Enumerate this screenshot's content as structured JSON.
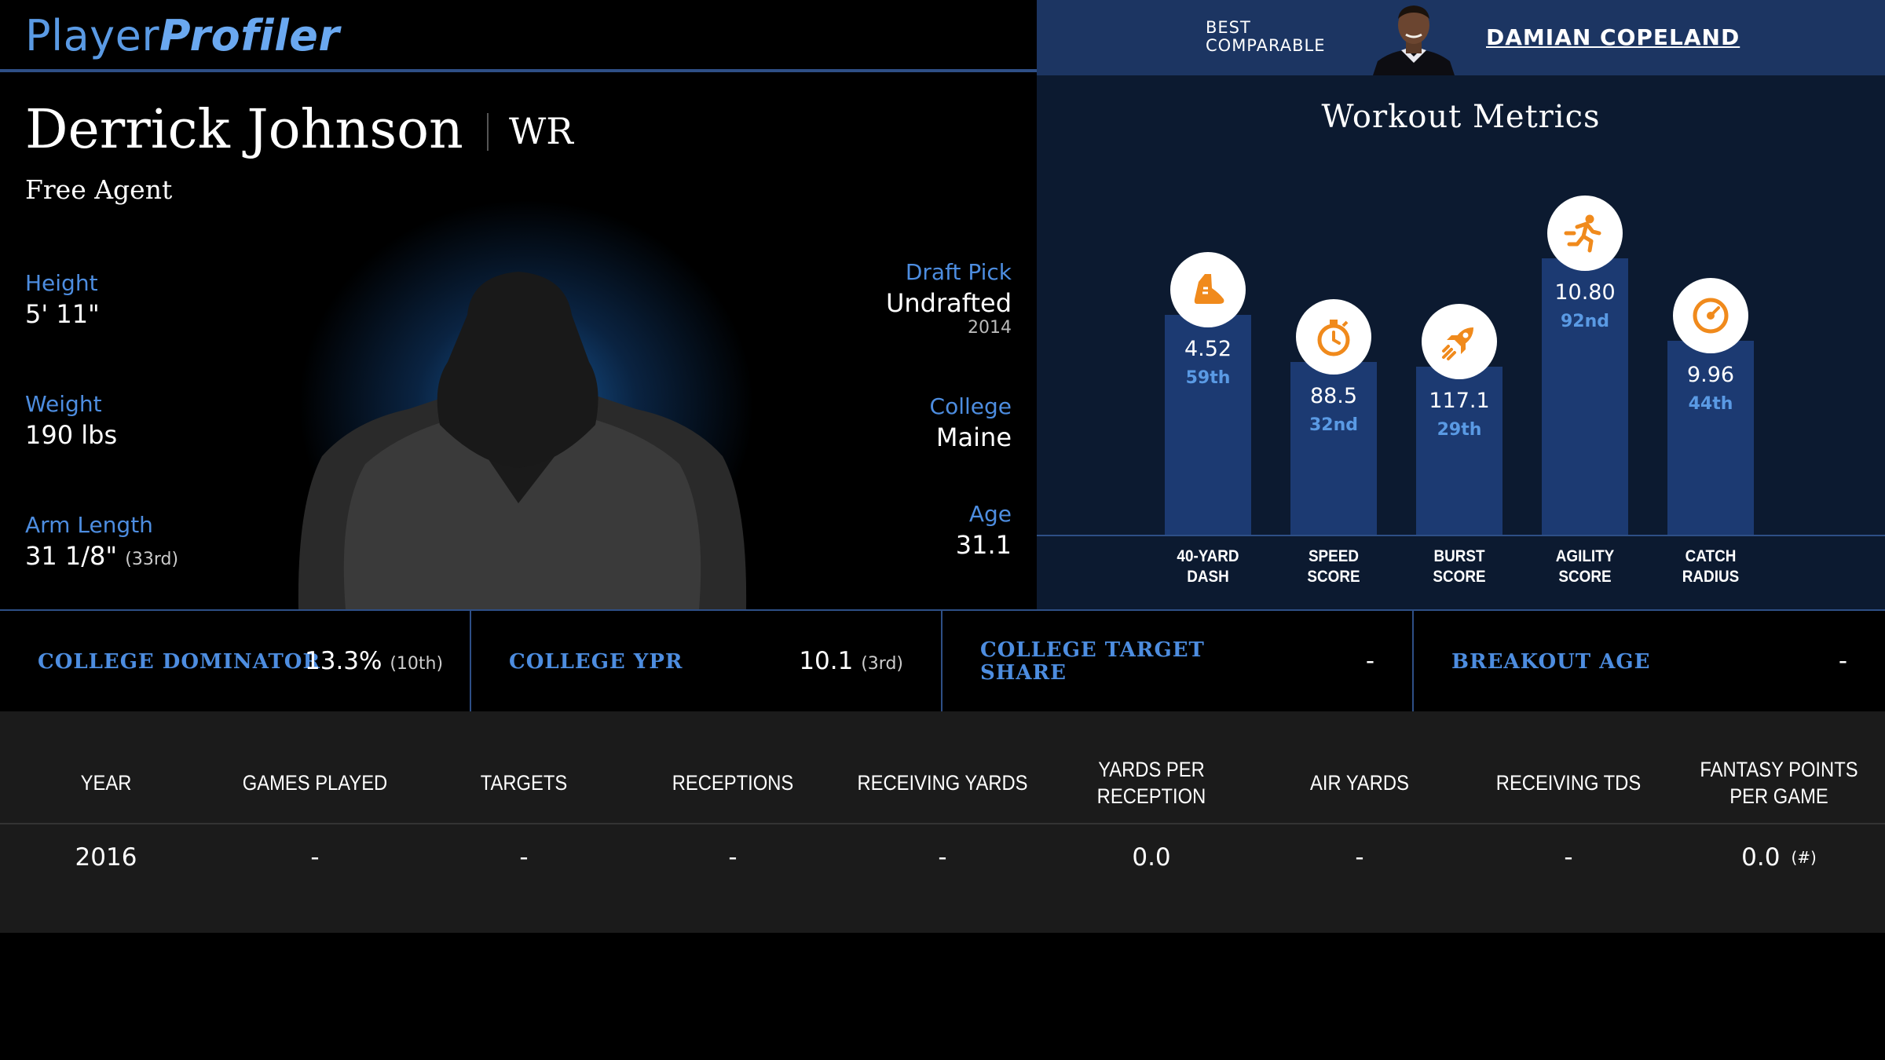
{
  "brand": {
    "part1": "Player",
    "part2": "Profiler"
  },
  "comparable": {
    "label": "BEST COMPARABLE",
    "name": "DAMIAN COPELAND"
  },
  "player": {
    "name": "Derrick Johnson",
    "position": "WR",
    "team": "Free Agent",
    "height_label": "Height",
    "height": "5' 11\"",
    "weight_label": "Weight",
    "weight": "190 lbs",
    "arm_label": "Arm Length",
    "arm": "31 1/8\"",
    "arm_rank": "(33rd)",
    "draft_label": "Draft Pick",
    "draft": "Undrafted",
    "draft_year": "2014",
    "college_label": "College",
    "college": "Maine",
    "age_label": "Age",
    "age": "31.1"
  },
  "workout": {
    "title": "Workout Metrics",
    "metrics": [
      {
        "label_1": "40-YARD",
        "label_2": "DASH",
        "value": "4.52",
        "percentile": "59th",
        "pct_value": 59,
        "icon": "shoe-icon"
      },
      {
        "label_1": "SPEED",
        "label_2": "SCORE",
        "value": "88.5",
        "percentile": "32nd",
        "pct_value": 32,
        "icon": "stopwatch-icon"
      },
      {
        "label_1": "BURST",
        "label_2": "SCORE",
        "value": "117.1",
        "percentile": "29th",
        "pct_value": 29,
        "icon": "rocket-icon"
      },
      {
        "label_1": "AGILITY",
        "label_2": "SCORE",
        "value": "10.80",
        "percentile": "92nd",
        "pct_value": 92,
        "icon": "runner-icon"
      },
      {
        "label_1": "CATCH",
        "label_2": "RADIUS",
        "value": "9.96",
        "percentile": "44th",
        "pct_value": 44,
        "icon": "target-gauge-icon"
      }
    ]
  },
  "stats": {
    "dominator_label": "COLLEGE DOMINATOR",
    "dominator": "13.3%",
    "dominator_rank": "(10th)",
    "ypr_label": "COLLEGE YPR",
    "ypr": "10.1",
    "ypr_rank": "(3rd)",
    "target_label_1": "COLLEGE TARGET",
    "target_label_2": "SHARE",
    "target": "-",
    "breakout_label": "BREAKOUT AGE",
    "breakout": "-"
  },
  "table": {
    "headers": {
      "year": "YEAR",
      "games": "GAMES PLAYED",
      "targets": "TARGETS",
      "receptions": "RECEPTIONS",
      "rec_yards": "RECEIVING YARDS",
      "ypr": "YARDS PER RECEPTION",
      "air_yards": "AIR YARDS",
      "rec_tds": "RECEIVING TDS",
      "fppg": "FANTASY POINTS PER GAME"
    },
    "rows": [
      {
        "year": "2016",
        "games": "-",
        "targets": "-",
        "receptions": "-",
        "rec_yards": "-",
        "ypr": "0.0",
        "air_yards": "-",
        "rec_tds": "-",
        "fppg": "0.0",
        "fppg_rank": "(#)"
      }
    ]
  },
  "colors": {
    "accent": "#4d8de0",
    "bar": "#1c3a72",
    "icon": "#f08a1c",
    "header_bg": "#1c3562"
  }
}
